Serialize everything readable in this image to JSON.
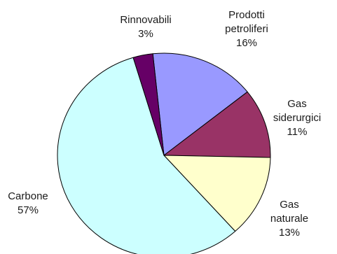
{
  "chart_data": {
    "type": "pie",
    "start_angle_deg": -6,
    "direction": "clockwise",
    "slices": [
      {
        "name": "Prodotti petroliferi",
        "label_lines": [
          "Prodotti",
          "petroliferi"
        ],
        "value": 16,
        "value_label": "16%",
        "color": "#9999FF"
      },
      {
        "name": "Gas siderurgici",
        "label_lines": [
          "Gas",
          "siderurgici"
        ],
        "value": 11,
        "value_label": "11%",
        "color": "#993366"
      },
      {
        "name": "Gas naturale",
        "label_lines": [
          "Gas",
          "naturale"
        ],
        "value": 13,
        "value_label": "13%",
        "color": "#FFFFCC"
      },
      {
        "name": "Carbone",
        "label_lines": [
          "Carbone"
        ],
        "value": 57,
        "value_label": "57%",
        "color": "#CCFFFF"
      },
      {
        "name": "Rinnovabili",
        "label_lines": [
          "Rinnovabili"
        ],
        "value": 3,
        "value_label": "3%",
        "color": "#660066"
      }
    ]
  }
}
